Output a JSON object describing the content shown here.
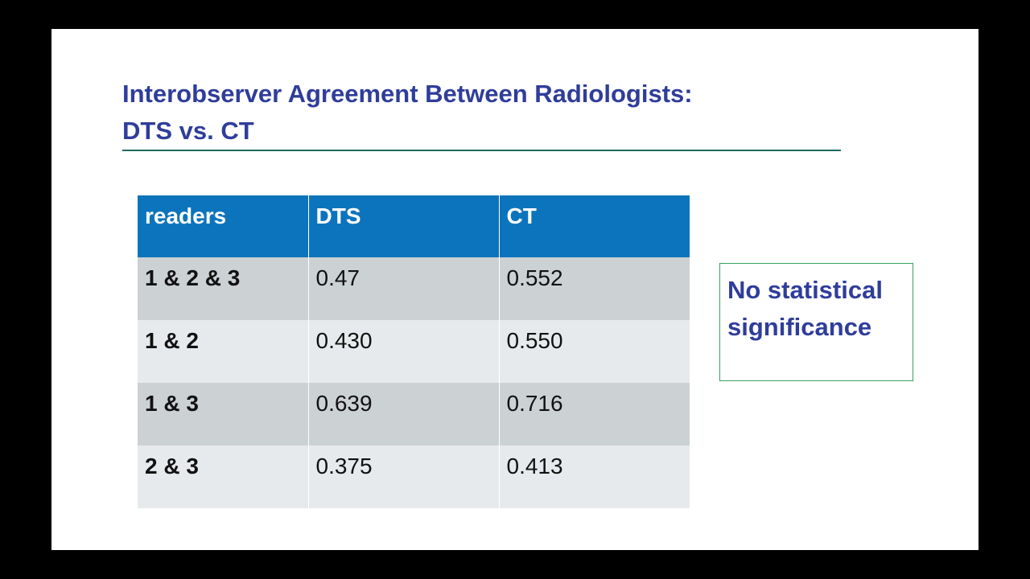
{
  "slide": {
    "title_line1": "Interobserver Agreement Between Radiologists:",
    "title_line2": "DTS vs. CT",
    "table": {
      "headers": [
        "readers",
        "DTS",
        "CT"
      ],
      "rows": [
        {
          "readers": "1 & 2 & 3",
          "dts": "0.47",
          "ct": "0.552"
        },
        {
          "readers": "1 & 2",
          "dts": "0.430",
          "ct": "0.550"
        },
        {
          "readers": "1 & 3",
          "dts": "0.639",
          "ct": "0.716"
        },
        {
          "readers": "2 & 3",
          "dts": "0.375",
          "ct": "0.413"
        }
      ]
    },
    "note": "No statistical significance",
    "colors": {
      "title": "#2f3d9a",
      "header_bg": "#0c74bc",
      "row_dark": "#ccd1d4",
      "row_light": "#e7eaec",
      "note_border": "#3aa061",
      "rule": "#1f6b5c"
    }
  }
}
